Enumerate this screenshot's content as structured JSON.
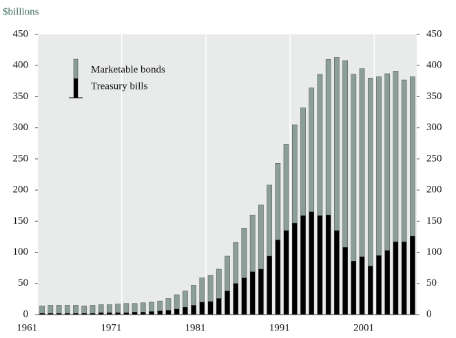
{
  "chart_data": {
    "type": "stacked_bar",
    "ylabel": "$billions",
    "categories": [
      "1961",
      null,
      null,
      null,
      null,
      null,
      null,
      null,
      null,
      null,
      "1971",
      null,
      null,
      null,
      null,
      null,
      null,
      null,
      null,
      null,
      "1981",
      null,
      null,
      null,
      null,
      null,
      null,
      null,
      null,
      null,
      "1991",
      null,
      null,
      null,
      null,
      null,
      null,
      null,
      null,
      null,
      "2001",
      null,
      null,
      null,
      null
    ],
    "series": [
      {
        "name": "Treasury bills",
        "color": "#000000",
        "values": [
          2,
          2,
          2,
          2,
          2,
          2,
          2,
          3,
          3,
          3,
          3,
          4,
          4,
          5,
          6,
          7,
          9,
          12,
          15,
          20,
          21,
          26,
          38,
          50,
          59,
          69,
          73,
          94,
          120,
          135,
          147,
          159,
          165,
          159,
          160,
          135,
          108,
          86,
          93,
          78,
          95,
          103,
          117,
          117,
          126
        ]
      },
      {
        "name": "Marketable bonds",
        "color": "#8b9e98",
        "values": [
          12,
          13,
          13,
          13,
          13,
          12,
          13,
          13,
          13,
          14,
          15,
          14,
          15,
          15,
          16,
          19,
          23,
          26,
          32,
          39,
          42,
          47,
          56,
          66,
          80,
          91,
          103,
          114,
          123,
          139,
          158,
          173,
          199,
          227,
          250,
          278,
          300,
          300,
          302,
          302,
          287,
          284,
          274,
          260,
          256
        ]
      }
    ],
    "ylim": [
      0,
      450
    ],
    "yticks": [
      0,
      50,
      100,
      150,
      200,
      250,
      300,
      350,
      400,
      450
    ],
    "y2lim": [
      0,
      450
    ],
    "y2ticks": [
      0,
      50,
      100,
      150,
      200,
      250,
      300,
      350,
      400,
      450
    ],
    "legend": "upper left"
  }
}
